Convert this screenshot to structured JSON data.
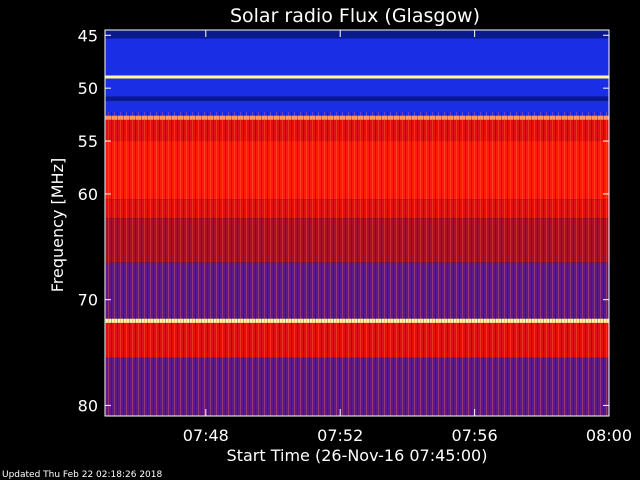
{
  "chart_data": {
    "type": "heatmap",
    "title": "Solar radio Flux (Glasgow)",
    "xlabel": "Start Time (26-Nov-16 07:45:00)",
    "ylabel": "Frequency [MHz]",
    "footer": "Updated Thu Feb 22 02:18:26 2018",
    "x_range_minutes": [
      0,
      15
    ],
    "x_ticks": [
      {
        "minute": 3,
        "label": "07:48"
      },
      {
        "minute": 7,
        "label": "07:52"
      },
      {
        "minute": 11,
        "label": "07:56"
      },
      {
        "minute": 15,
        "label": "08:00"
      }
    ],
    "y_range_mhz": [
      44.5,
      81
    ],
    "y_ticks": [
      45,
      50,
      55,
      60,
      70,
      80
    ],
    "bands": [
      {
        "from": 44.5,
        "to": 45.3,
        "level": "dark-blue"
      },
      {
        "from": 45.3,
        "to": 48.8,
        "level": "blue"
      },
      {
        "from": 48.8,
        "to": 49.1,
        "level": "white"
      },
      {
        "from": 49.1,
        "to": 50.8,
        "level": "blue"
      },
      {
        "from": 50.8,
        "to": 51.2,
        "level": "dark-blue"
      },
      {
        "from": 51.2,
        "to": 52.6,
        "level": "blue"
      },
      {
        "from": 52.6,
        "to": 53.0,
        "level": "bright"
      },
      {
        "from": 53.0,
        "to": 55.0,
        "level": "red"
      },
      {
        "from": 55.0,
        "to": 60.5,
        "level": "bright-red"
      },
      {
        "from": 60.5,
        "to": 62.3,
        "level": "red"
      },
      {
        "from": 62.3,
        "to": 66.5,
        "level": "dark-red"
      },
      {
        "from": 66.5,
        "to": 71.8,
        "level": "purple"
      },
      {
        "from": 71.8,
        "to": 72.2,
        "level": "white"
      },
      {
        "from": 72.2,
        "to": 75.5,
        "level": "red"
      },
      {
        "from": 75.5,
        "to": 81.0,
        "level": "purple"
      }
    ],
    "palette": {
      "dark-blue": "#0a1a8c",
      "blue": "#1a2ee6",
      "white": "#fff6a8",
      "bright": "#ff9966",
      "red": "#e01010",
      "bright-red": "#ff1c0c",
      "dark-red": "#a8102a",
      "purple": "#5a1a8e"
    }
  }
}
